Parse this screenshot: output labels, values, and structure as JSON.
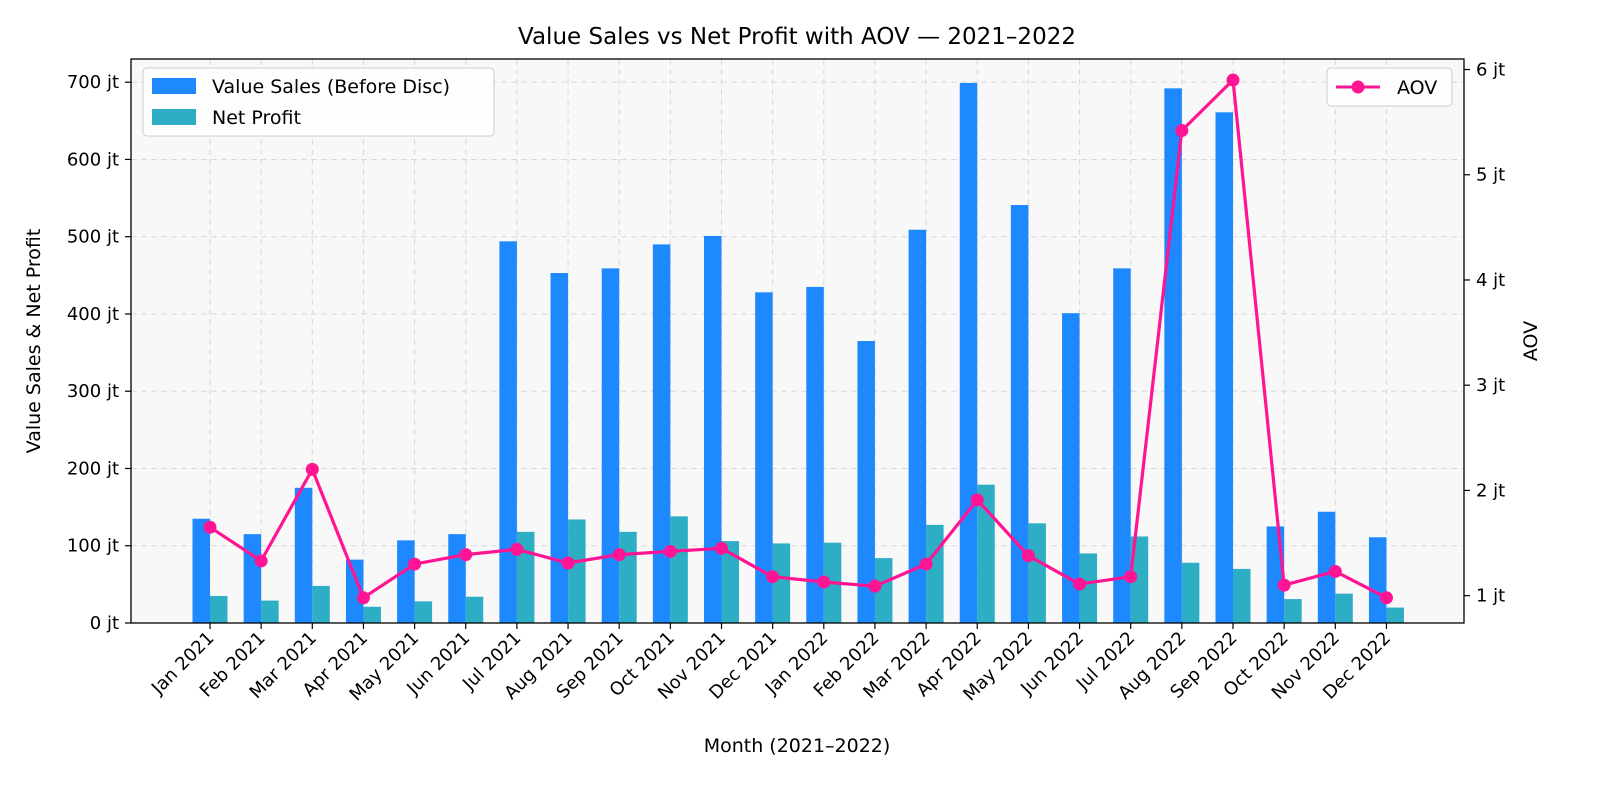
{
  "chart_data": {
    "type": "bar",
    "title": "Value Sales vs Net Profit with AOV — 2021–2022",
    "xlabel": "Month (2021–2022)",
    "ylabel": "Value Sales & Net Profit",
    "y2label": "AOV",
    "categories": [
      "Jan 2021",
      "Feb 2021",
      "Mar 2021",
      "Apr 2021",
      "May 2021",
      "Jun 2021",
      "Jul 2021",
      "Aug 2021",
      "Sep 2021",
      "Oct 2021",
      "Nov 2021",
      "Dec 2021",
      "Jan 2022",
      "Feb 2022",
      "Mar 2022",
      "Apr 2022",
      "May 2022",
      "Jun 2022",
      "Jul 2022",
      "Aug 2022",
      "Sep 2022",
      "Oct 2022",
      "Nov 2022",
      "Dec 2022"
    ],
    "series": [
      {
        "name": "Value Sales (Before Disc)",
        "axis": "left",
        "kind": "bar",
        "color": "#1e88ff",
        "values": [
          135,
          115,
          175,
          82,
          107,
          115,
          494,
          453,
          459,
          490,
          501,
          428,
          435,
          365,
          509,
          699,
          541,
          401,
          459,
          692,
          661,
          125,
          144,
          111
        ]
      },
      {
        "name": "Net Profit",
        "axis": "left",
        "kind": "bar",
        "color": "#2eaec5",
        "values": [
          35,
          29,
          48,
          21,
          28,
          34,
          118,
          134,
          118,
          138,
          106,
          103,
          104,
          84,
          127,
          179,
          129,
          90,
          112,
          78,
          70,
          31,
          38,
          20
        ]
      },
      {
        "name": "AOV",
        "axis": "right",
        "kind": "line",
        "color": "#ff1493",
        "values": [
          1.65,
          1.33,
          2.2,
          0.98,
          1.3,
          1.39,
          1.44,
          1.31,
          1.39,
          1.42,
          1.45,
          1.18,
          1.13,
          1.09,
          1.3,
          1.91,
          1.38,
          1.11,
          1.18,
          5.42,
          5.9,
          1.1,
          1.23,
          0.98
        ]
      }
    ],
    "ylim": [
      0,
      730
    ],
    "y_ticks": [
      0,
      100,
      200,
      300,
      400,
      500,
      600,
      700
    ],
    "y_tick_labels": [
      "0 jt",
      "100 jt",
      "200 jt",
      "300 jt",
      "400 jt",
      "500 jt",
      "600 jt",
      "700 jt"
    ],
    "y2lim": [
      0.74,
      6.1
    ],
    "y2_ticks": [
      1,
      2,
      3,
      4,
      5,
      6
    ],
    "y2_tick_labels": [
      "1 jt",
      "2 jt",
      "3 jt",
      "4 jt",
      "5 jt",
      "6 jt"
    ],
    "grid": true,
    "legend_left_placement": "top-left",
    "legend_right_placement": "top-right",
    "colors": {
      "plot_background": "#f8f8f8",
      "grid": "#d9d9d9"
    }
  }
}
